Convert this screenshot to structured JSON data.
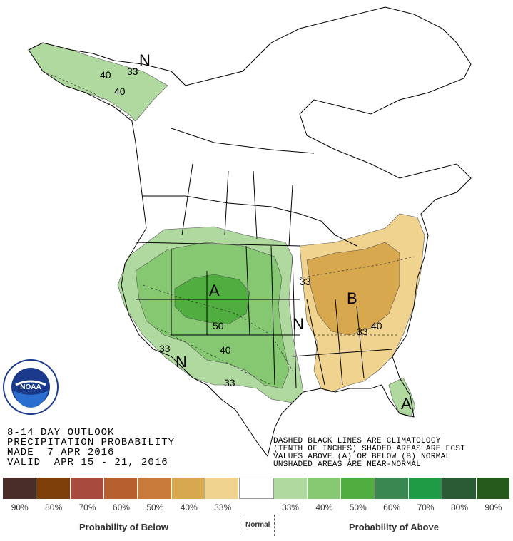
{
  "title_lines": [
    "8-14 DAY OUTLOOK",
    "PRECIPITATION PROBABILITY",
    "MADE  7 APR 2016",
    "VALID  APR 15 - 21, 2016"
  ],
  "note_lines": [
    "DASHED BLACK LINES ARE CLIMATOLOGY",
    "(TENTH OF INCHES) SHADED AREAS ARE FCST",
    "VALUES ABOVE (A) OR BELOW (B) NORMAL",
    "UNSHADED AREAS ARE NEAR-NORMAL"
  ],
  "logo": {
    "text": "NOAA",
    "ring_text": "NATIONAL OCEANIC AND ATMOSPHERIC ADMINISTRATION · U.S. DEPARTMENT OF COMMERCE"
  },
  "legend": {
    "colors": [
      "#4a2c28",
      "#7d3e0a",
      "#a64b3e",
      "#b5602e",
      "#c97b3c",
      "#d8a84e",
      "#efd38f",
      "#ffffff",
      "#b0d9a0",
      "#86c872",
      "#4fae3f",
      "#3b8752",
      "#1f9b46",
      "#2a5b34",
      "#255a1c"
    ],
    "labels": [
      "90%",
      "80%",
      "70%",
      "60%",
      "50%",
      "40%",
      "33%",
      "",
      "33%",
      "40%",
      "50%",
      "60%",
      "70%",
      "80%",
      "90%"
    ],
    "below_label": "Probability of Below",
    "normal_label": "Normal",
    "above_label": "Probability of Above"
  },
  "map_labels": {
    "letters": [
      "N",
      "A",
      "B",
      "N",
      "N",
      "A"
    ],
    "numbers": [
      "40",
      "33",
      "40",
      "50",
      "33",
      "40",
      "33",
      "33",
      "40",
      "33"
    ]
  },
  "colors": {
    "above_33": "#b0d9a0",
    "above_40": "#86c872",
    "above_50": "#4fae3f",
    "below_33": "#efd38f",
    "below_40": "#d8a84e"
  }
}
